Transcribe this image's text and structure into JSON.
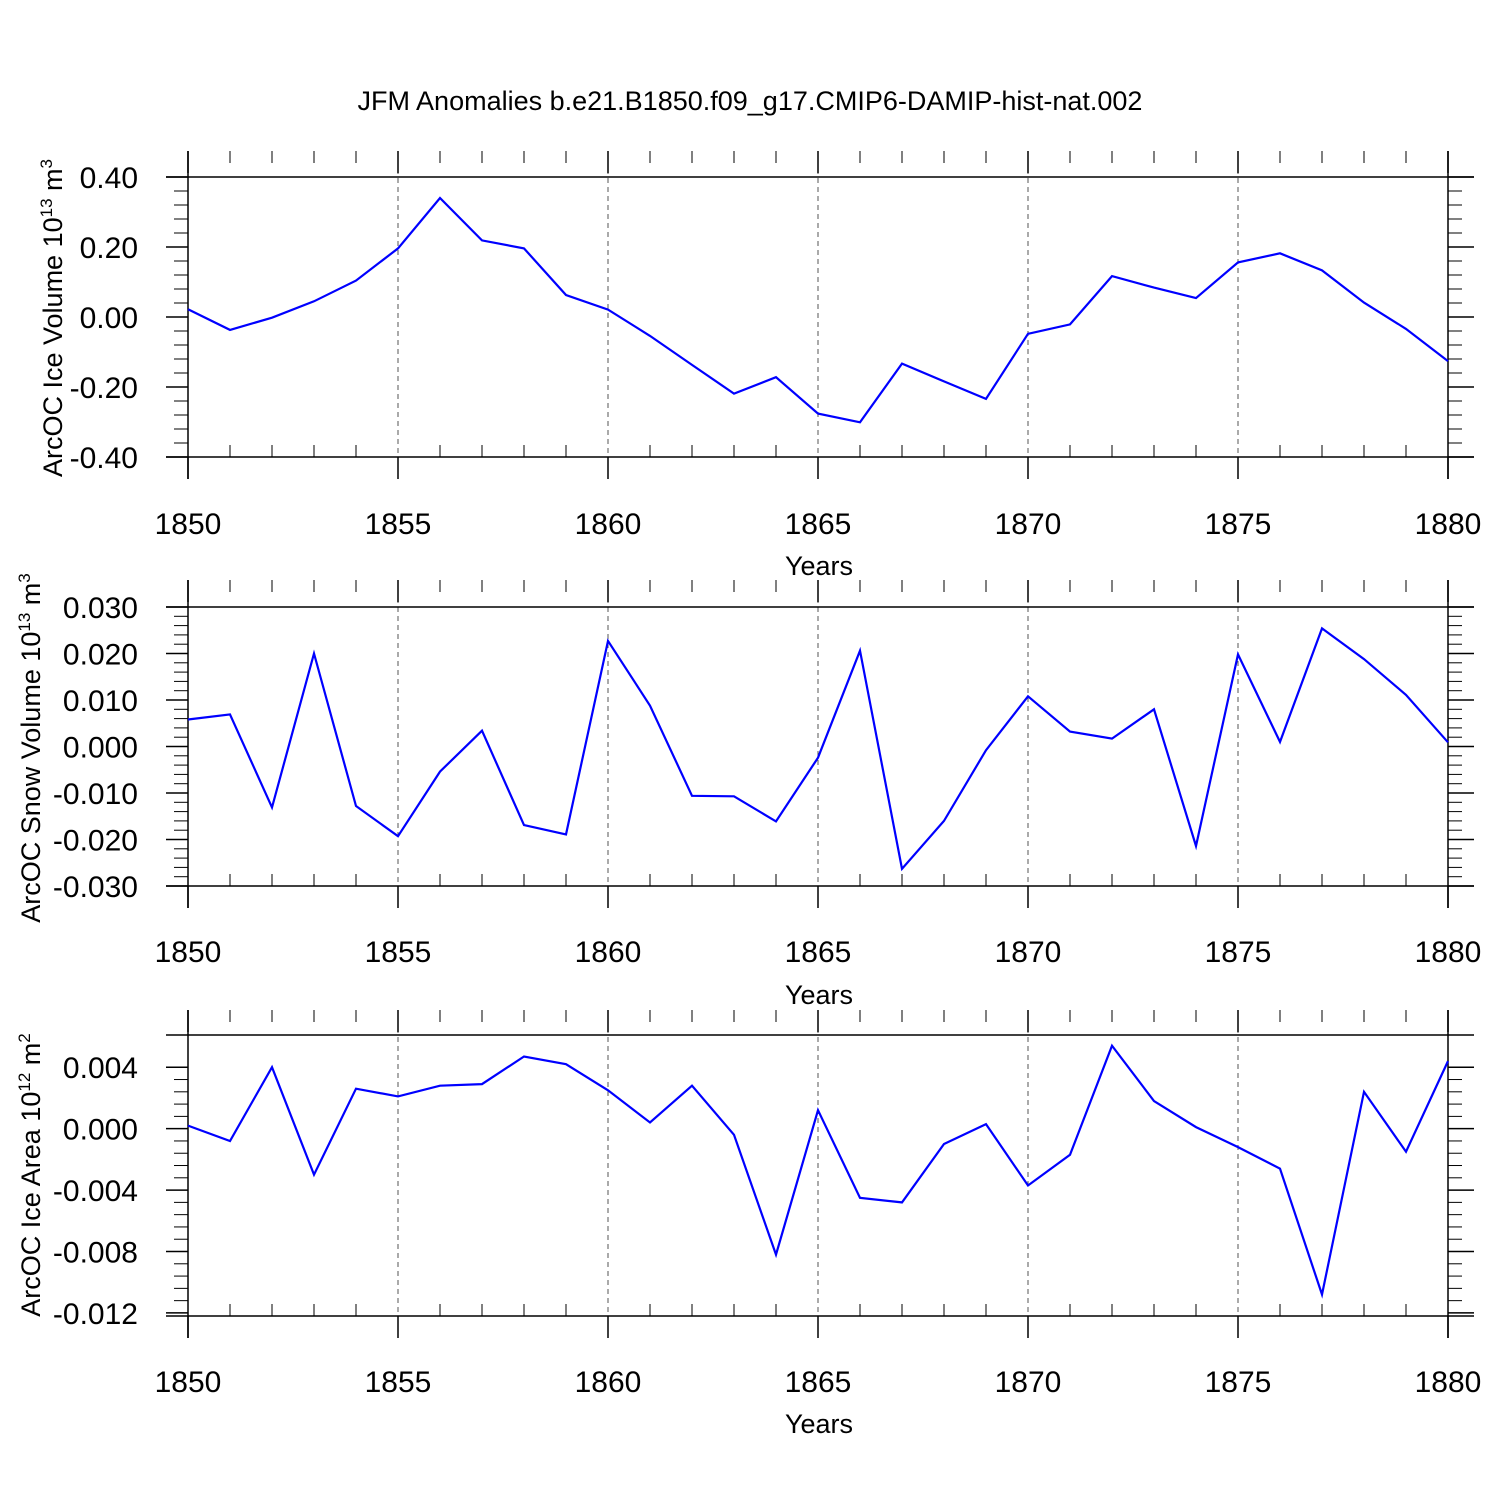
{
  "title": "JFM Anomalies b.e21.B1850.f09_g17.CMIP6-DAMIP-hist-nat.002",
  "colors": {
    "line": "#0000ff",
    "axis": "#000000",
    "grid": "#555555"
  },
  "chart_data": [
    {
      "type": "line",
      "title": "JFM Anomalies b.e21.B1850.f09_g17.CMIP6-DAMIP-hist-nat.002",
      "xlabel": "Years",
      "ylabel_main": "ArcOC Ice Volume 10",
      "ylabel_exp": "13",
      "ylabel_tail": " m",
      "ylabel_unit_exp": "3",
      "xlim": [
        1850,
        1880
      ],
      "ylim": [
        -0.4,
        0.4
      ],
      "xticks": [
        1850,
        1855,
        1860,
        1865,
        1870,
        1875,
        1880
      ],
      "xtick_labels": [
        "1850",
        "1855",
        "1860",
        "1865",
        "1870",
        "1875",
        "1880"
      ],
      "yticks": [
        0.4,
        0.2,
        0.0,
        -0.2,
        -0.4
      ],
      "ytick_labels": [
        "0.40",
        "0.20",
        "0.00",
        "-0.20",
        "-0.40"
      ],
      "grid": "vertical dashed at major x ticks",
      "x": [
        1850,
        1851,
        1852,
        1853,
        1854,
        1855,
        1856,
        1857,
        1858,
        1859,
        1860,
        1861,
        1862,
        1863,
        1864,
        1865,
        1866,
        1867,
        1868,
        1869,
        1870,
        1871,
        1872,
        1873,
        1874,
        1875,
        1876,
        1877,
        1878,
        1879,
        1880
      ],
      "y": [
        0.022,
        -0.037,
        -0.002,
        0.045,
        0.104,
        0.196,
        0.34,
        0.219,
        0.196,
        0.063,
        0.021,
        -0.054,
        -0.137,
        -0.219,
        -0.172,
        -0.276,
        -0.301,
        -0.133,
        -0.184,
        -0.234,
        -0.048,
        -0.021,
        0.117,
        0.084,
        0.054,
        0.156,
        0.182,
        0.133,
        0.041,
        -0.034,
        -0.126
      ]
    },
    {
      "type": "line",
      "xlabel": "Years",
      "ylabel_main": "ArcOC Snow Volume 10",
      "ylabel_exp": "13",
      "ylabel_tail": " m",
      "ylabel_unit_exp": "3",
      "xlim": [
        1850,
        1880
      ],
      "ylim": [
        -0.03,
        0.03
      ],
      "xticks": [
        1850,
        1855,
        1860,
        1865,
        1870,
        1875,
        1880
      ],
      "xtick_labels": [
        "1850",
        "1855",
        "1860",
        "1865",
        "1870",
        "1875",
        "1880"
      ],
      "yticks": [
        0.03,
        0.02,
        0.01,
        0.0,
        -0.01,
        -0.02,
        -0.03
      ],
      "ytick_labels": [
        "0.030",
        "0.020",
        "0.010",
        "0.000",
        "-0.010",
        "-0.020",
        "-0.030"
      ],
      "grid": "vertical dashed at major x ticks",
      "x": [
        1850,
        1851,
        1852,
        1853,
        1854,
        1855,
        1856,
        1857,
        1858,
        1859,
        1860,
        1861,
        1862,
        1863,
        1864,
        1865,
        1866,
        1867,
        1868,
        1869,
        1870,
        1871,
        1872,
        1873,
        1874,
        1875,
        1876,
        1877,
        1878,
        1879,
        1880
      ],
      "y": [
        0.0058,
        0.0069,
        -0.0131,
        0.02,
        -0.0128,
        -0.0193,
        -0.0054,
        0.0034,
        -0.0169,
        -0.0189,
        0.0227,
        0.0088,
        -0.0106,
        -0.0107,
        -0.0161,
        -0.0024,
        0.0206,
        -0.0263,
        -0.016,
        -0.0008,
        0.0108,
        0.0032,
        0.0017,
        0.008,
        -0.0214,
        0.0198,
        0.001,
        0.0254,
        0.0188,
        0.0111,
        0.0009
      ]
    },
    {
      "type": "line",
      "xlabel": "Years",
      "ylabel_main": "ArcOC Ice Area 10",
      "ylabel_exp": "12",
      "ylabel_tail": " m",
      "ylabel_unit_exp": "2",
      "xlim": [
        1850,
        1880
      ],
      "ylim": [
        -0.0122,
        0.0061
      ],
      "xticks": [
        1850,
        1855,
        1860,
        1865,
        1870,
        1875,
        1880
      ],
      "xtick_labels": [
        "1850",
        "1855",
        "1860",
        "1865",
        "1870",
        "1875",
        "1880"
      ],
      "yticks": [
        0.004,
        0.0,
        -0.004,
        -0.008,
        -0.012
      ],
      "ytick_labels": [
        "0.004",
        "0.000",
        "-0.004",
        "-0.008",
        "-0.012"
      ],
      "grid": "vertical dashed at major x ticks",
      "x": [
        1850,
        1851,
        1852,
        1853,
        1854,
        1855,
        1856,
        1857,
        1858,
        1859,
        1860,
        1861,
        1862,
        1863,
        1864,
        1865,
        1866,
        1867,
        1868,
        1869,
        1870,
        1871,
        1872,
        1873,
        1874,
        1875,
        1876,
        1877,
        1878,
        1879,
        1880
      ],
      "y": [
        0.0002,
        -0.0008,
        0.004,
        -0.003,
        0.0026,
        0.0021,
        0.0028,
        0.0029,
        0.0047,
        0.0042,
        0.0025,
        0.0004,
        0.0028,
        -0.0004,
        -0.0082,
        0.0012,
        -0.0045,
        -0.0048,
        -0.001,
        0.0003,
        -0.0037,
        -0.0017,
        0.0054,
        0.0018,
        0.0001,
        -0.0012,
        -0.0026,
        -0.0108,
        0.0024,
        -0.0015,
        0.0044
      ]
    }
  ]
}
